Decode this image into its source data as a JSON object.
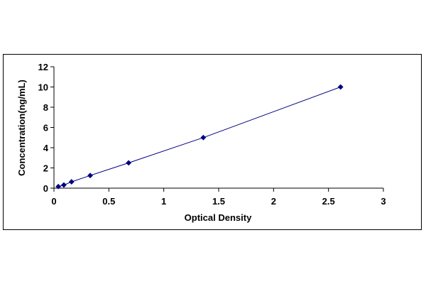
{
  "chart_data": {
    "type": "line",
    "title": "",
    "xlabel": "Optical Density",
    "ylabel": "Concentration(ng/mL)",
    "xlim": [
      0,
      3
    ],
    "ylim": [
      0,
      12
    ],
    "x_ticks": [
      "0",
      "0.5",
      "1",
      "1.5",
      "2",
      "2.5",
      "3"
    ],
    "y_ticks": [
      "0",
      "2",
      "4",
      "6",
      "8",
      "10",
      "12"
    ],
    "grid": false,
    "legend": "none",
    "series": [
      {
        "x": [
          0.04,
          0.09,
          0.16,
          0.33,
          0.68,
          1.36,
          2.61
        ],
        "y": [
          0.156,
          0.312,
          0.625,
          1.25,
          2.5,
          5,
          10
        ],
        "color": "#000080",
        "marker": "diamond"
      }
    ]
  }
}
